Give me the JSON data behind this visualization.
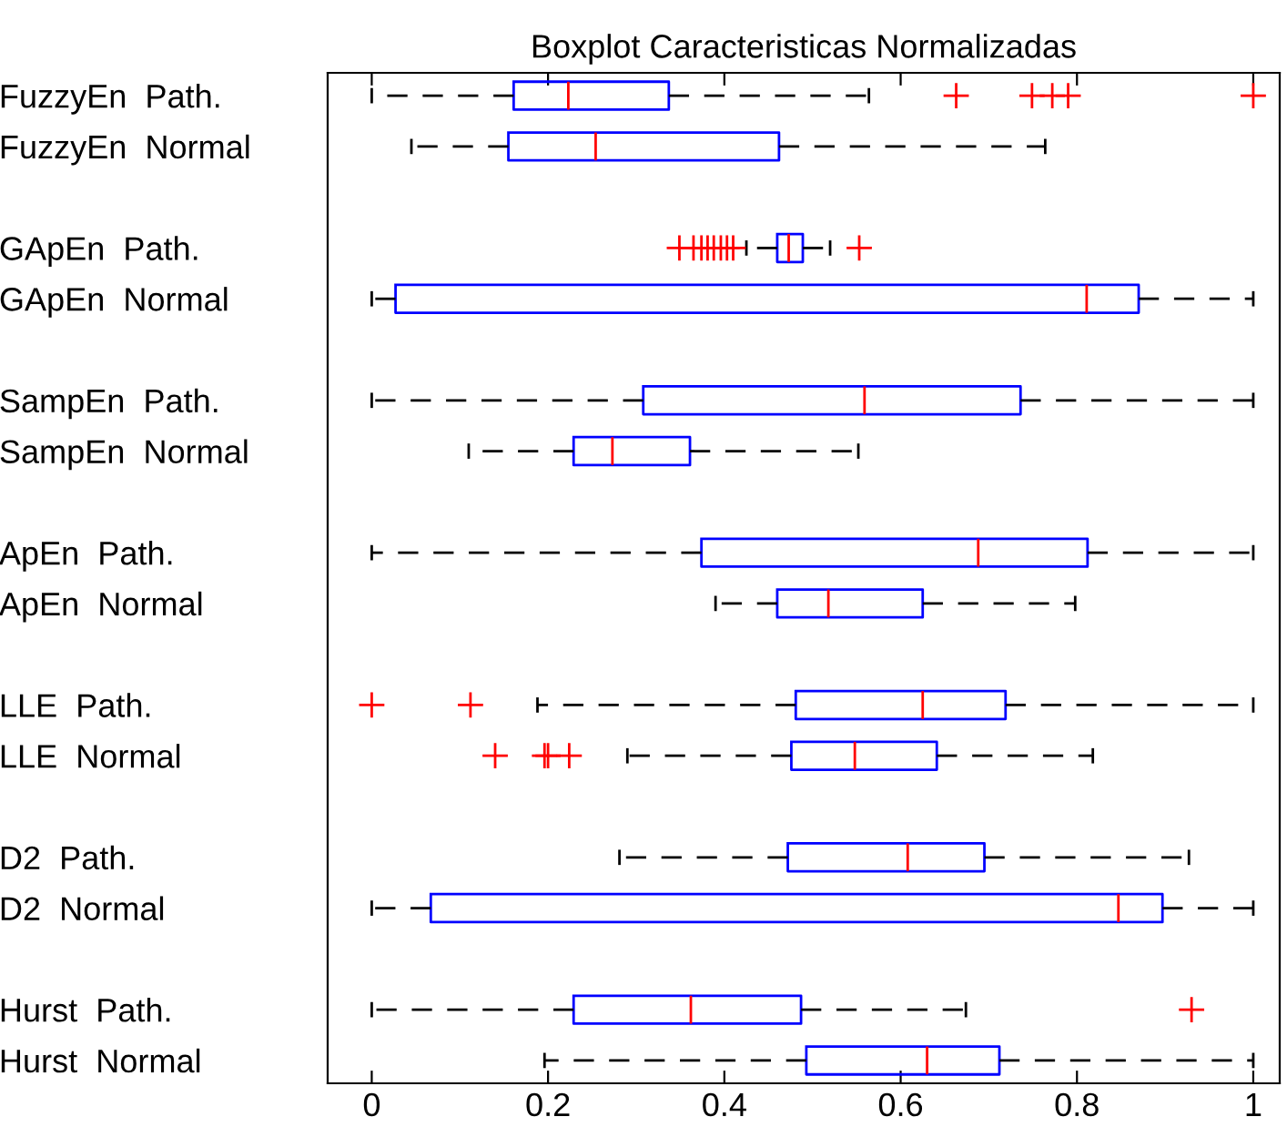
{
  "chart_data": {
    "type": "box",
    "title": "Boxplot Caracteristicas Normalizadas",
    "orientation": "horizontal",
    "color": "#0000ff",
    "categories": [
      "FuzzyEn  Path.",
      "FuzzyEn  Normal",
      null,
      "GApEn  Path.",
      "GApEn  Normal",
      null,
      "SampEn  Path.",
      "SampEn  Normal",
      null,
      "ApEn  Path.",
      "ApEn  Normal",
      null,
      "LLE  Path.",
      "LLE  Normal",
      null,
      "D2  Path.",
      "D2  Normal",
      null,
      "Hurst  Path.",
      "Hurst  Normal"
    ],
    "boxes": [
      {
        "low": 0,
        "q1": 0.161,
        "median": 0.223,
        "q3": 0.337,
        "high": 0.564,
        "outliers": [
          0.663,
          0.749,
          0.772,
          0.79,
          1.0
        ]
      },
      {
        "low": 0.045,
        "q1": 0.155,
        "median": 0.254,
        "q3": 0.462,
        "high": 0.764
      },
      null,
      {
        "low": 0.425,
        "q1": 0.46,
        "median": 0.473,
        "q3": 0.489,
        "high": 0.52,
        "outliers": [
          0.349,
          0.365,
          0.374,
          0.381,
          0.388,
          0.396,
          0.403,
          0.41,
          0.553
        ]
      },
      {
        "low": 0,
        "q1": 0.027,
        "median": 0.811,
        "q3": 0.87,
        "high": 1.0
      },
      null,
      {
        "low": 0,
        "q1": 0.308,
        "median": 0.559,
        "q3": 0.736,
        "high": 1.0
      },
      {
        "low": 0.11,
        "q1": 0.229,
        "median": 0.273,
        "q3": 0.361,
        "high": 0.552
      },
      null,
      {
        "low": 0,
        "q1": 0.374,
        "median": 0.688,
        "q3": 0.812,
        "high": 1.0
      },
      {
        "low": 0.39,
        "q1": 0.46,
        "median": 0.518,
        "q3": 0.625,
        "high": 0.798
      },
      null,
      {
        "low": 0.188,
        "q1": 0.481,
        "median": 0.625,
        "q3": 0.719,
        "high": 1.0,
        "outliers": [
          0,
          0.112
        ]
      },
      {
        "low": 0.29,
        "q1": 0.476,
        "median": 0.548,
        "q3": 0.641,
        "high": 0.818,
        "outliers": [
          0.14,
          0.196,
          0.2,
          0.224
        ]
      },
      null,
      {
        "low": 0.281,
        "q1": 0.472,
        "median": 0.608,
        "q3": 0.695,
        "high": 0.927
      },
      {
        "low": 0,
        "q1": 0.067,
        "median": 0.847,
        "q3": 0.897,
        "high": 1.0
      },
      null,
      {
        "low": 0,
        "q1": 0.229,
        "median": 0.362,
        "q3": 0.487,
        "high": 0.674,
        "outliers": [
          0.93
        ]
      },
      {
        "low": 0.196,
        "q1": 0.493,
        "median": 0.63,
        "q3": 0.712,
        "high": 1.0
      }
    ],
    "xlim": [
      -0.05,
      1.03
    ],
    "xticks": [
      0,
      0.2,
      0.4,
      0.6,
      0.8,
      1
    ]
  }
}
